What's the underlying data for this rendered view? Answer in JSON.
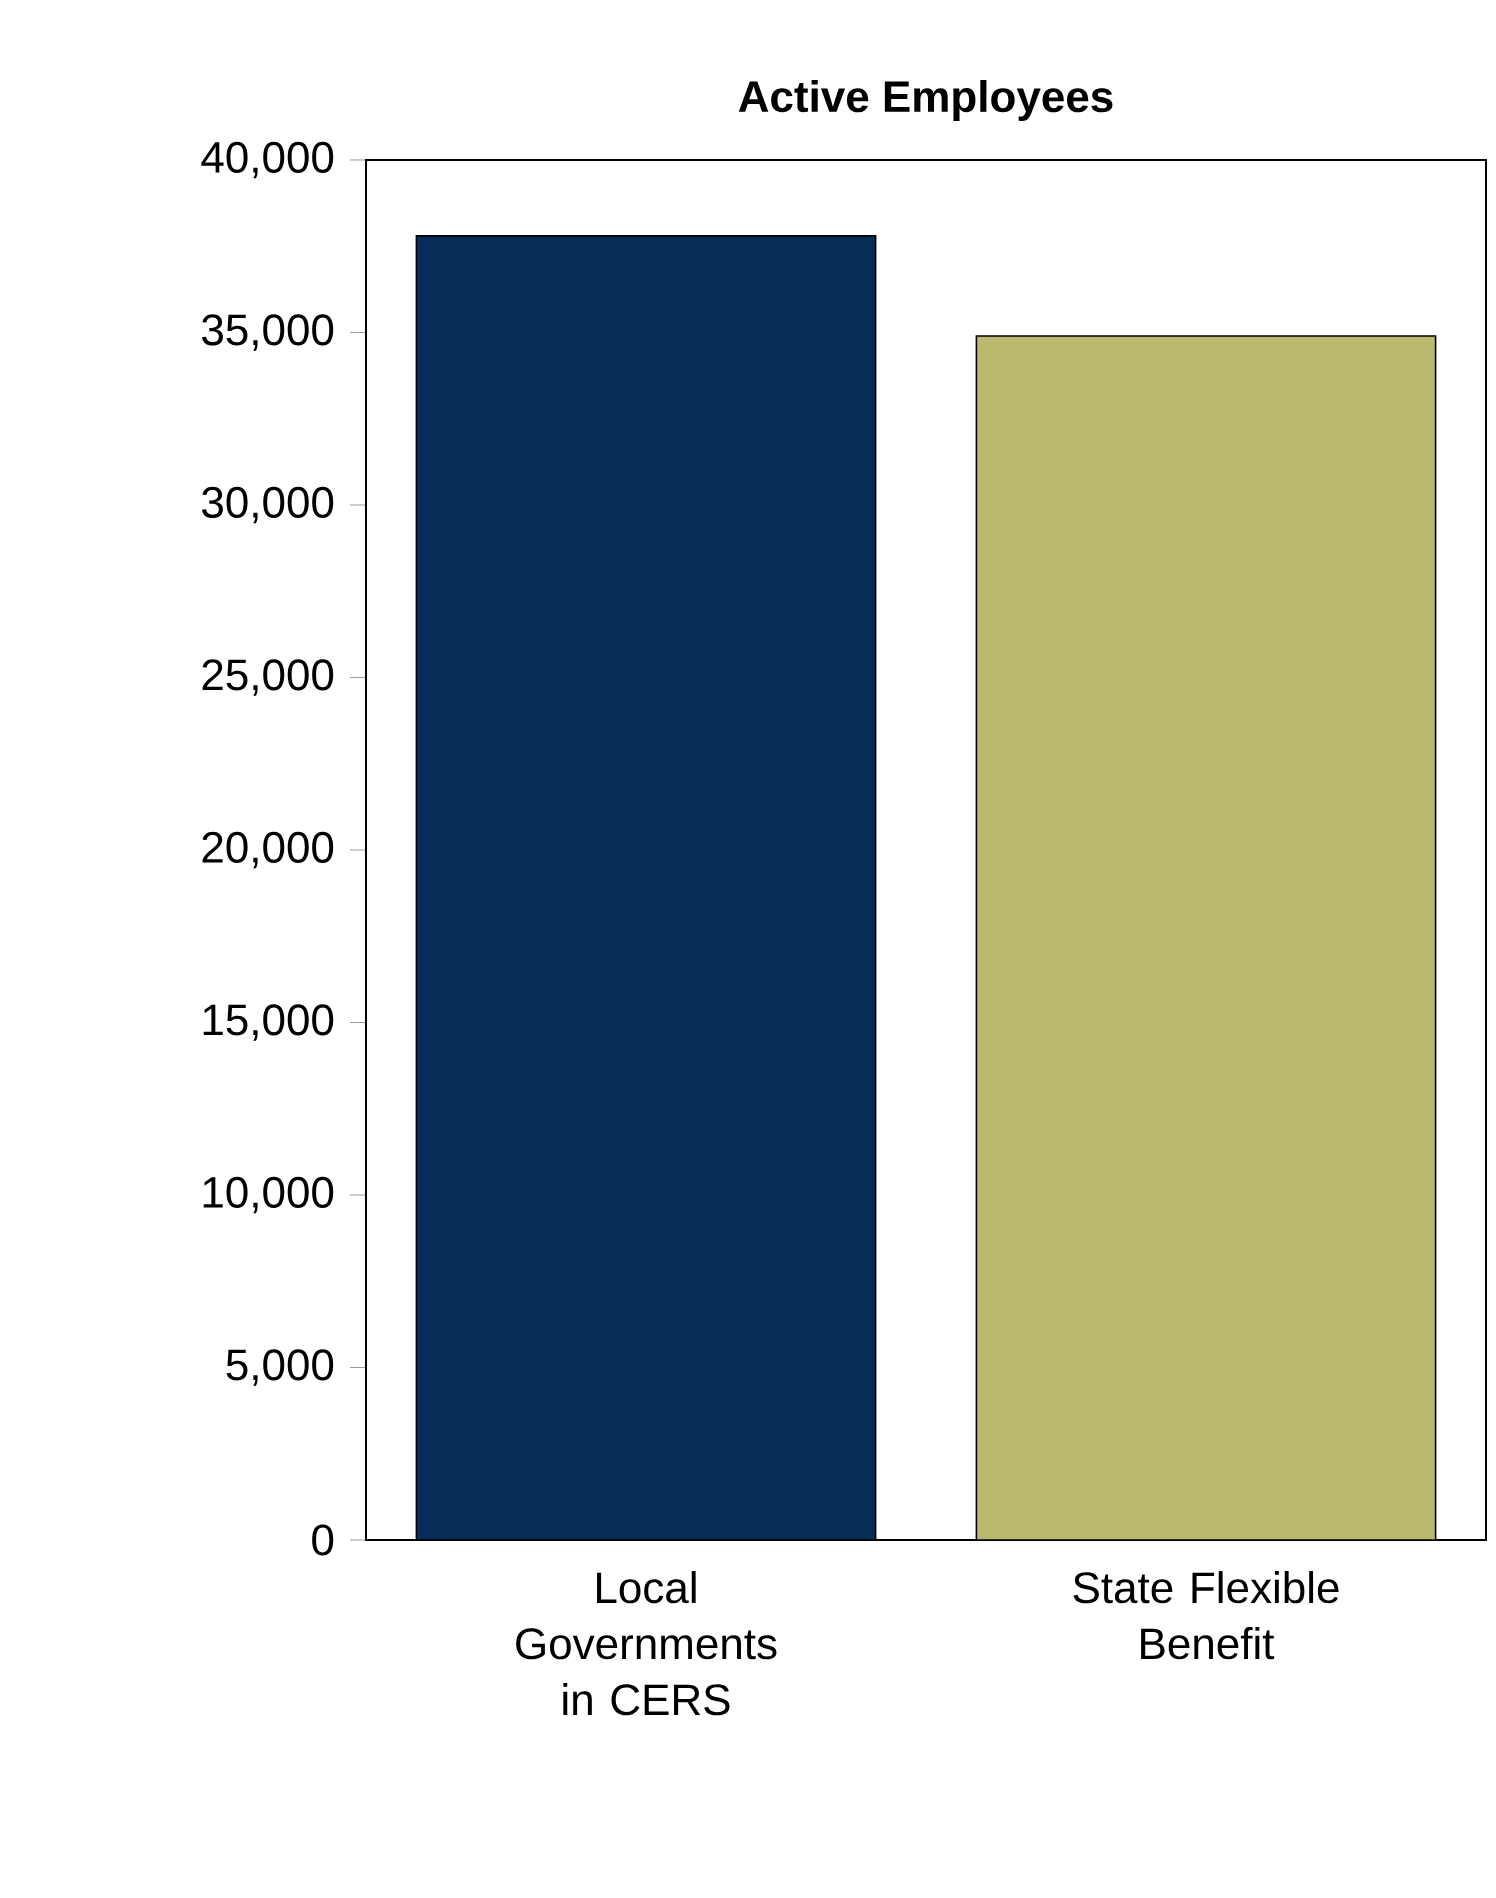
{
  "chart_data": {
    "type": "bar",
    "title": "Active Employees",
    "categories": [
      "Local Governments in CERS",
      "State Flexible Benefit"
    ],
    "values": [
      37800,
      34900
    ],
    "colors": [
      "#062c58",
      "#b9b86c"
    ],
    "ylim": [
      0,
      40000
    ],
    "yticks": [
      {
        "value": 0,
        "label": "0"
      },
      {
        "value": 5000,
        "label": "5,000"
      },
      {
        "value": 10000,
        "label": "10,000"
      },
      {
        "value": 15000,
        "label": "15,000"
      },
      {
        "value": 20000,
        "label": "20,000"
      },
      {
        "value": 25000,
        "label": "25,000"
      },
      {
        "value": 30000,
        "label": "30,000"
      },
      {
        "value": 35000,
        "label": "35,000"
      },
      {
        "value": 40000,
        "label": "40,000"
      }
    ],
    "grid": false
  }
}
